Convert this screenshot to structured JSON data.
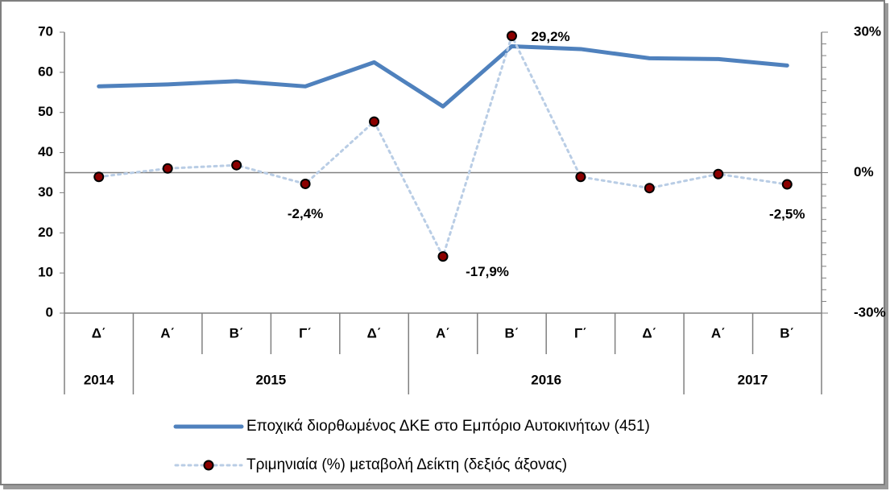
{
  "chart_data": {
    "type": "line",
    "groups": [
      {
        "label": "2014",
        "categories": [
          "Δ΄"
        ]
      },
      {
        "label": "2015",
        "categories": [
          "Α΄",
          "Β΄",
          "Γ΄",
          "Δ΄"
        ]
      },
      {
        "label": "2016",
        "categories": [
          "Α΄",
          "Β΄",
          "Γ΄",
          "Δ΄"
        ]
      },
      {
        "label": "2017",
        "categories": [
          "Α΄",
          "Β΄"
        ]
      }
    ],
    "series": [
      {
        "name": "Εποχικά διορθωμένος ΔΚΕ στο Εμπόριο Αυτοκινήτων (451)",
        "color": "#4f81bd",
        "axis": "y",
        "values": [
          56.5,
          57,
          57.8,
          56.5,
          62.5,
          51.5,
          66.5,
          65.8,
          63.5,
          63.3,
          61.7
        ]
      },
      {
        "name": "Τριμηνιαία (%) μεταβολή Δείκτη (δεξιός άξονας)",
        "color": "#b9cde5",
        "marker_color": "#8b0000",
        "axis": "y2",
        "values": [
          -0.9,
          0.9,
          1.6,
          -2.4,
          10.9,
          -17.9,
          29.2,
          -0.9,
          -3.3,
          -0.3,
          -2.5
        ],
        "value_labels": [
          null,
          null,
          null,
          "-2,4%",
          null,
          "-17,9%",
          "29,2%",
          null,
          null,
          null,
          "-2,5%"
        ]
      }
    ],
    "ylim": [
      0,
      70
    ],
    "yticks": [
      0,
      10,
      20,
      30,
      40,
      50,
      60,
      70
    ],
    "y2lim": [
      -30,
      30
    ],
    "y2ticks": [
      {
        "value": -30,
        "label": "-30%"
      },
      {
        "value": 0,
        "label": "0%"
      },
      {
        "value": 30,
        "label": "30%"
      }
    ]
  }
}
